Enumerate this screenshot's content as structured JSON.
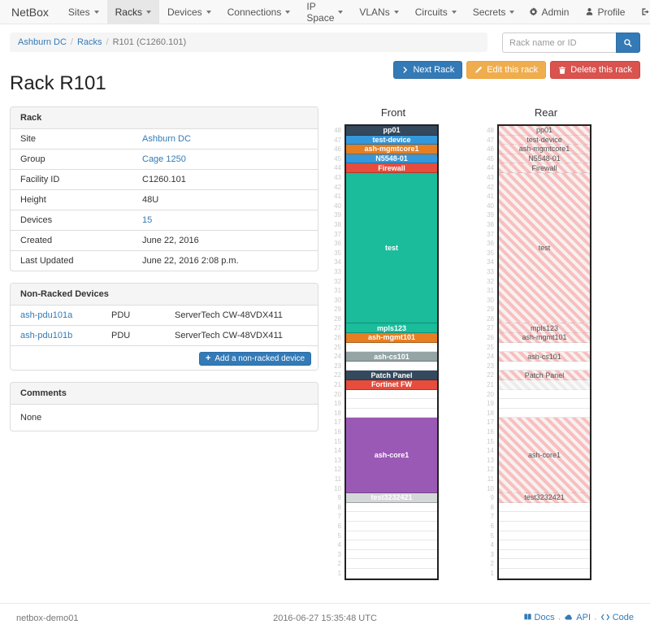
{
  "navbar": {
    "brand": "NetBox",
    "items": [
      {
        "label": "Sites",
        "active": false
      },
      {
        "label": "Racks",
        "active": true
      },
      {
        "label": "Devices",
        "active": false
      },
      {
        "label": "Connections",
        "active": false
      },
      {
        "label": "IP Space",
        "active": false
      },
      {
        "label": "VLANs",
        "active": false
      },
      {
        "label": "Circuits",
        "active": false
      },
      {
        "label": "Secrets",
        "active": false
      }
    ],
    "right": [
      {
        "label": "Admin",
        "icon": "gear-icon"
      },
      {
        "label": "Profile",
        "icon": "person-icon"
      },
      {
        "label": "Log out",
        "icon": "logout-icon"
      }
    ]
  },
  "breadcrumb": [
    {
      "label": "Ashburn DC",
      "link": true
    },
    {
      "label": "Racks",
      "link": true
    },
    {
      "label": "R101 (C1260.101)",
      "link": false
    }
  ],
  "search": {
    "placeholder": "Rack name or ID",
    "icon": "search-icon"
  },
  "actions": {
    "next_rack": "Next Rack",
    "edit": "Edit this rack",
    "delete": "Delete this rack"
  },
  "page_title": "Rack R101",
  "rack_panel": {
    "title": "Rack",
    "rows": [
      {
        "label": "Site",
        "value": "Ashburn DC",
        "link": true
      },
      {
        "label": "Group",
        "value": "Cage 1250",
        "link": true
      },
      {
        "label": "Facility ID",
        "value": "C1260.101",
        "link": false
      },
      {
        "label": "Height",
        "value": "48U",
        "link": false
      },
      {
        "label": "Devices",
        "value": "15",
        "link": true
      },
      {
        "label": "Created",
        "value": "June 22, 2016",
        "link": false
      },
      {
        "label": "Last Updated",
        "value": "June 22, 2016 2:08 p.m.",
        "link": false
      }
    ]
  },
  "non_racked": {
    "title": "Non-Racked Devices",
    "devices": [
      {
        "name": "ash-pdu101a",
        "role": "PDU",
        "type": "ServerTech CW-48VDX411"
      },
      {
        "name": "ash-pdu101b",
        "role": "PDU",
        "type": "ServerTech CW-48VDX411"
      }
    ],
    "add_button": "Add a non-racked device"
  },
  "comments": {
    "title": "Comments",
    "body": "None"
  },
  "elevations": {
    "front_title": "Front",
    "rear_title": "Rear",
    "units_total": 48,
    "unit_numbering": "48 at top down to 1 at bottom",
    "devices": [
      {
        "name": "pp01",
        "top_u": 48,
        "height": 1,
        "color": "#34495e",
        "rear_label_hidden": false
      },
      {
        "name": "test-device",
        "top_u": 47,
        "height": 1,
        "color": "#3498db",
        "rear_label_hidden": false
      },
      {
        "name": "ash-mgmtcore1",
        "top_u": 46,
        "height": 1,
        "color": "#e67e22",
        "rear_label_hidden": false
      },
      {
        "name": "N5548-01",
        "top_u": 45,
        "height": 1,
        "color": "#3498db",
        "rear_label_hidden": false
      },
      {
        "name": "Firewall",
        "top_u": 44,
        "height": 1,
        "color": "#e74c3c",
        "rear_label_hidden": false
      },
      {
        "name": "test",
        "top_u": 43,
        "height": 16,
        "color": "#1abc9c",
        "rear_label_hidden": false
      },
      {
        "name": "mpls123",
        "top_u": 27,
        "height": 1,
        "color": "#1abc9c",
        "rear_label_hidden": false
      },
      {
        "name": "ash-mgmt101",
        "top_u": 26,
        "height": 1,
        "color": "#e67e22",
        "rear_label_hidden": false
      },
      {
        "name": "ash-cs101",
        "top_u": 24,
        "height": 1,
        "color": "#95a5a6",
        "rear_label_hidden": false
      },
      {
        "name": "Patch Panel",
        "top_u": 22,
        "height": 1,
        "color": "#34495e",
        "rear_label_hidden": false
      },
      {
        "name": "Fortinet FW",
        "top_u": 21,
        "height": 1,
        "color": "#e74c3c",
        "rear_label_hidden": true,
        "rear_ghost": true
      },
      {
        "name": "ash-core1",
        "top_u": 17,
        "height": 8,
        "color": "#9b59b6",
        "rear_label_hidden": false
      },
      {
        "name": "test3232421",
        "top_u": 9,
        "height": 1,
        "color": "#d5d8d9",
        "rear_label_hidden": false
      }
    ]
  },
  "footer": {
    "hostname": "netbox-demo01",
    "timestamp": "2016-06-27 15:35:48 UTC",
    "links": [
      {
        "label": "Docs",
        "icon": "book-icon"
      },
      {
        "label": "API",
        "icon": "cloud-icon"
      },
      {
        "label": "Code",
        "icon": "code-icon"
      }
    ]
  },
  "colors": {
    "primary": "#337ab7",
    "warning": "#f0ad4e",
    "danger": "#d9534f",
    "navbar_bg": "#f8f8f8",
    "navbar_active_bg": "#e7e7e7",
    "panel_border": "#dddddd",
    "rear_stripe_pink": "#f8bfbf"
  }
}
